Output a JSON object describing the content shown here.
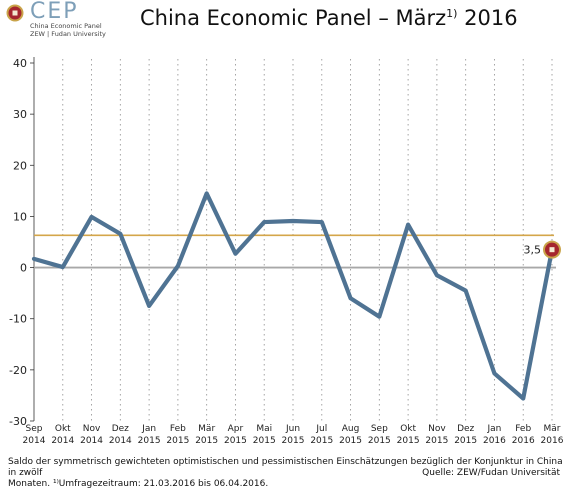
{
  "logo": {
    "name": "CEP",
    "sub1": "China Economic Panel",
    "sub2": "ZEW | Fudan University"
  },
  "title": {
    "main": "China Economic Panel – März",
    "sup": "1)",
    "year": " 2016"
  },
  "chart_data": {
    "type": "line",
    "categories": [
      [
        "Sep",
        "2014"
      ],
      [
        "Okt",
        "2014"
      ],
      [
        "Nov",
        "2014"
      ],
      [
        "Dez",
        "2014"
      ],
      [
        "Jan",
        "2015"
      ],
      [
        "Feb",
        "2015"
      ],
      [
        "Mär",
        "2015"
      ],
      [
        "Apr",
        "2015"
      ],
      [
        "Mai",
        "2015"
      ],
      [
        "Jun",
        "2015"
      ],
      [
        "Jul",
        "2015"
      ],
      [
        "Aug",
        "2015"
      ],
      [
        "Sep",
        "2015"
      ],
      [
        "Okt",
        "2015"
      ],
      [
        "Nov",
        "2015"
      ],
      [
        "Dez",
        "2015"
      ],
      [
        "Jan",
        "2016"
      ],
      [
        "Feb",
        "2016"
      ],
      [
        "Mär",
        "2016"
      ]
    ],
    "series": [
      {
        "values": [
          1.7,
          0.1,
          9.9,
          6.6,
          -7.5,
          0.3,
          14.5,
          2.7,
          8.9,
          9.1,
          8.9,
          -6.0,
          -9.6,
          8.4,
          -1.5,
          -4.5,
          -20.7,
          -25.6,
          3.5
        ],
        "color": "#4f7393"
      }
    ],
    "reference_line": {
      "value": 6.3,
      "color": "#d4a64a"
    },
    "end_label": "3,5",
    "yticks": [
      40,
      30,
      20,
      10,
      0,
      -10,
      -20,
      -30
    ],
    "ylim": [
      -30,
      40
    ],
    "grid": "vertical dotted",
    "zero_line_color": "#a8a8a8"
  },
  "footer": {
    "line1": "Saldo der symmetrisch gewichteten optimistischen und pessimistischen Einschätzungen bezüglich der Konjunktur in China in zwölf",
    "line2": "Monaten. ¹⁾Umfragezeitraum: 21.03.2016 bis 06.04.2016.",
    "source": "Quelle: ZEW/Fudan Universität"
  }
}
